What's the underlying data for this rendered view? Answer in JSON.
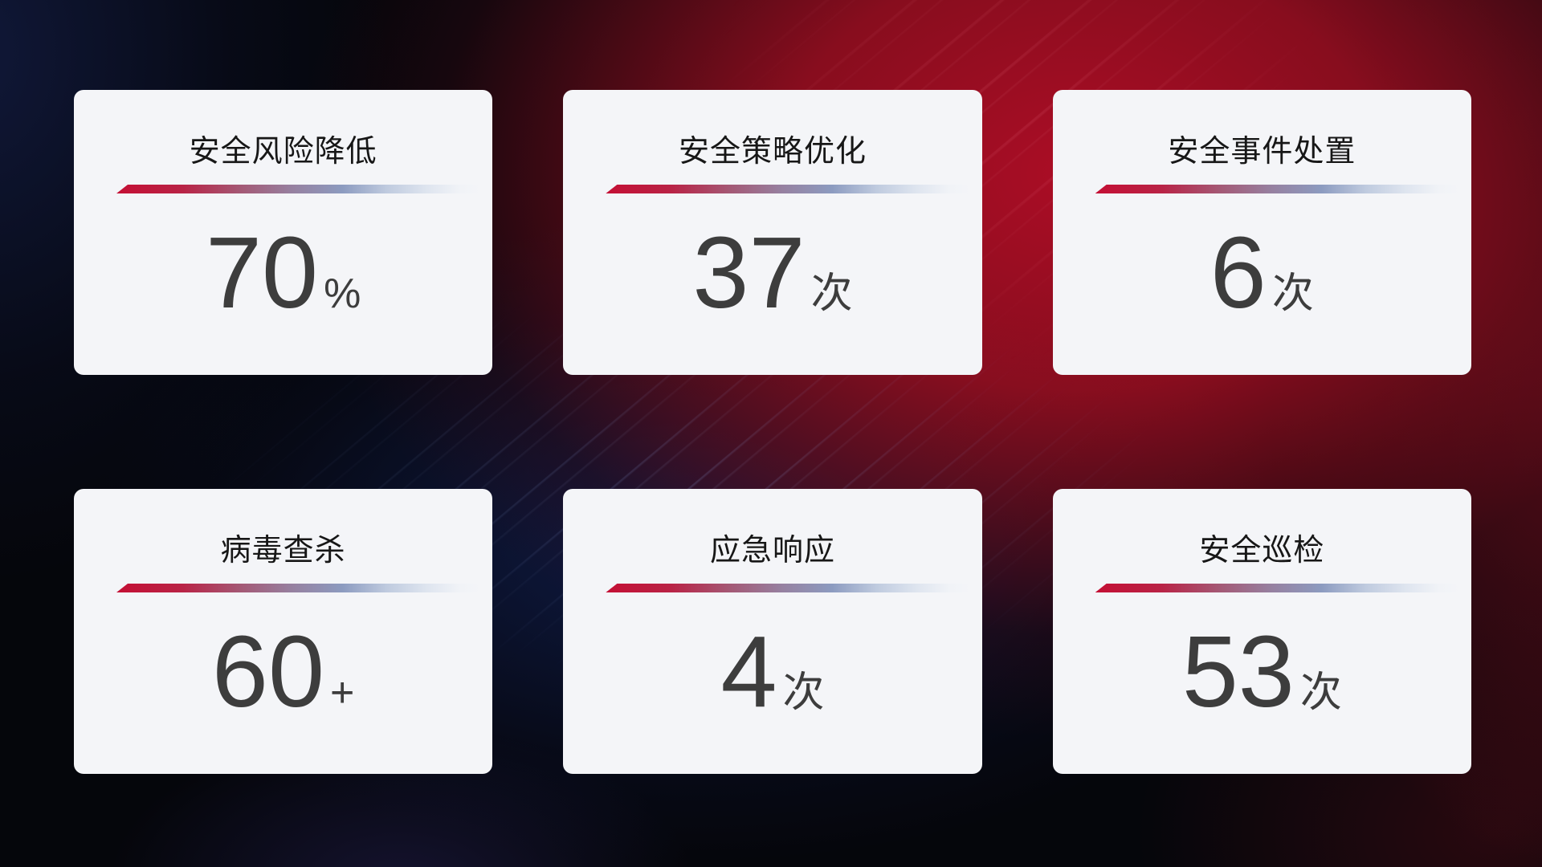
{
  "theme": {
    "card_bg": "#f4f5f8",
    "title_color": "#171717",
    "value_color": "#3d3d3d",
    "divider_red": "#c40f34",
    "divider_blue": "#8c9bc0",
    "bg_red": "#af0d26",
    "bg_navy": "#141e48",
    "bg_blue": "#172c76"
  },
  "cards": [
    {
      "title": "安全风险降低",
      "value": "70",
      "unit": "%"
    },
    {
      "title": "安全策略优化",
      "value": "37",
      "unit": "次"
    },
    {
      "title": "安全事件处置",
      "value": "6",
      "unit": "次"
    },
    {
      "title": "病毒查杀",
      "value": "60",
      "unit": "+"
    },
    {
      "title": "应急响应",
      "value": "4",
      "unit": "次"
    },
    {
      "title": "安全巡检",
      "value": "53",
      "unit": "次"
    }
  ],
  "chart_data": {
    "type": "table",
    "title": "",
    "categories": [
      "安全风险降低",
      "安全策略优化",
      "安全事件处置",
      "病毒查杀",
      "应急响应",
      "安全巡检"
    ],
    "values": [
      70,
      37,
      6,
      60,
      4,
      53
    ],
    "units": [
      "%",
      "次",
      "次",
      "+",
      "次",
      "次"
    ],
    "layout": "3x2 stat cards on dark red/blue gradient background"
  }
}
